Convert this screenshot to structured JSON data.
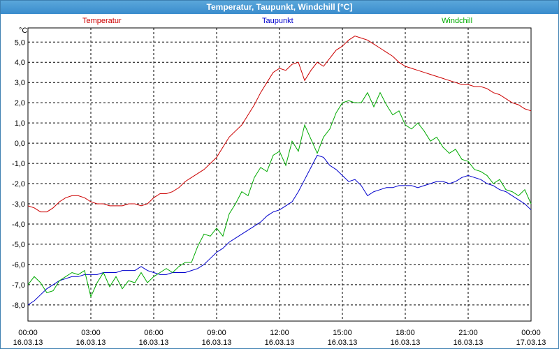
{
  "window": {
    "title": "Temperatur, Taupunkt, Windchill [°C]"
  },
  "chart_data": {
    "type": "line",
    "title": "Temperatur, Taupunkt, Windchill [°C]",
    "ylabel": "°C",
    "xlabel": "",
    "grid": true,
    "legend_placement": "top",
    "ylim": [
      -8.8,
      5.7
    ],
    "xlim_hours": [
      0,
      24
    ],
    "y_ticks": [
      5,
      4,
      3,
      2,
      1,
      0,
      -1,
      -2,
      -3,
      -4,
      -5,
      -6,
      -7,
      -8
    ],
    "y_tick_labels": [
      "5,0",
      "4,0",
      "3,0",
      "2,0",
      "1,0",
      "0,0",
      "-1,0",
      "-2,0",
      "-3,0",
      "-4,0",
      "-5,0",
      "-6,0",
      "-7,0",
      "-8,0"
    ],
    "x_ticks": [
      {
        "time": "00:00",
        "date": "16.03.13"
      },
      {
        "time": "03:00",
        "date": "16.03.13"
      },
      {
        "time": "06:00",
        "date": "16.03.13"
      },
      {
        "time": "09:00",
        "date": "16.03.13"
      },
      {
        "time": "12:00",
        "date": "16.03.13"
      },
      {
        "time": "15:00",
        "date": "16.03.13"
      },
      {
        "time": "18:00",
        "date": "16.03.13"
      },
      {
        "time": "21:00",
        "date": "16.03.13"
      },
      {
        "time": "00:00",
        "date": "17.03.13"
      }
    ],
    "series": [
      {
        "name": "Temperatur",
        "color": "#cc0000",
        "x": [
          0,
          0.3,
          0.6,
          0.9,
          1.2,
          1.5,
          1.8,
          2.1,
          2.4,
          2.7,
          3.0,
          3.3,
          3.6,
          3.9,
          4.2,
          4.5,
          4.8,
          5.1,
          5.4,
          5.7,
          6.0,
          6.3,
          6.6,
          6.9,
          7.2,
          7.5,
          7.8,
          8.1,
          8.4,
          8.7,
          9.0,
          9.3,
          9.6,
          9.9,
          10.2,
          10.5,
          10.8,
          11.1,
          11.4,
          11.7,
          12.0,
          12.3,
          12.6,
          12.9,
          13.2,
          13.5,
          13.8,
          14.1,
          14.4,
          14.7,
          15.0,
          15.3,
          15.6,
          15.9,
          16.2,
          16.5,
          16.8,
          17.1,
          17.4,
          17.7,
          18.0,
          18.3,
          18.6,
          18.9,
          19.2,
          19.5,
          19.8,
          20.1,
          20.4,
          20.7,
          21.0,
          21.3,
          21.6,
          21.9,
          22.2,
          22.5,
          22.8,
          23.1,
          23.4,
          23.7,
          24.0
        ],
        "values": [
          -3.1,
          -3.2,
          -3.4,
          -3.4,
          -3.2,
          -2.9,
          -2.7,
          -2.6,
          -2.6,
          -2.7,
          -2.9,
          -3.0,
          -3.0,
          -3.1,
          -3.1,
          -3.1,
          -3.0,
          -3.0,
          -3.1,
          -3.0,
          -2.7,
          -2.5,
          -2.5,
          -2.4,
          -2.2,
          -1.9,
          -1.7,
          -1.5,
          -1.3,
          -1.0,
          -0.7,
          -0.2,
          0.3,
          0.6,
          0.9,
          1.4,
          1.9,
          2.5,
          3.0,
          3.5,
          3.7,
          3.6,
          3.9,
          4.0,
          3.1,
          3.6,
          4.0,
          3.8,
          4.2,
          4.6,
          4.8,
          5.1,
          5.3,
          5.2,
          5.1,
          4.9,
          4.7,
          4.5,
          4.3,
          4.0,
          3.8,
          3.7,
          3.6,
          3.5,
          3.4,
          3.3,
          3.2,
          3.1,
          3.0,
          2.9,
          2.9,
          2.8,
          2.8,
          2.7,
          2.5,
          2.4,
          2.2,
          2.0,
          1.9,
          1.7,
          1.6
        ]
      },
      {
        "name": "Taupunkt",
        "color": "#0000cc",
        "x": [
          0,
          0.3,
          0.6,
          0.9,
          1.2,
          1.5,
          1.8,
          2.1,
          2.4,
          2.7,
          3.0,
          3.3,
          3.6,
          3.9,
          4.2,
          4.5,
          4.8,
          5.1,
          5.4,
          5.7,
          6.0,
          6.3,
          6.6,
          6.9,
          7.2,
          7.5,
          7.8,
          8.1,
          8.4,
          8.7,
          9.0,
          9.3,
          9.6,
          9.9,
          10.2,
          10.5,
          10.8,
          11.1,
          11.4,
          11.7,
          12.0,
          12.3,
          12.6,
          12.9,
          13.2,
          13.5,
          13.8,
          14.1,
          14.4,
          14.7,
          15.0,
          15.3,
          15.6,
          15.9,
          16.2,
          16.5,
          16.8,
          17.1,
          17.4,
          17.7,
          18.0,
          18.3,
          18.6,
          18.9,
          19.2,
          19.5,
          19.8,
          20.1,
          20.4,
          20.7,
          21.0,
          21.3,
          21.6,
          21.9,
          22.2,
          22.5,
          22.8,
          23.1,
          23.4,
          23.7,
          24.0
        ],
        "values": [
          -8.0,
          -7.8,
          -7.5,
          -7.2,
          -7.0,
          -6.8,
          -6.7,
          -6.6,
          -6.6,
          -6.5,
          -6.5,
          -6.5,
          -6.4,
          -6.4,
          -6.4,
          -6.3,
          -6.3,
          -6.3,
          -6.1,
          -6.3,
          -6.4,
          -6.5,
          -6.5,
          -6.4,
          -6.4,
          -6.4,
          -6.3,
          -6.2,
          -6.0,
          -5.7,
          -5.4,
          -5.2,
          -4.9,
          -4.7,
          -4.5,
          -4.3,
          -4.1,
          -3.9,
          -3.6,
          -3.4,
          -3.3,
          -3.1,
          -2.9,
          -2.4,
          -1.8,
          -1.2,
          -0.6,
          -0.7,
          -1.1,
          -1.3,
          -1.6,
          -1.9,
          -1.8,
          -2.1,
          -2.6,
          -2.4,
          -2.3,
          -2.2,
          -2.2,
          -2.1,
          -2.1,
          -2.1,
          -2.2,
          -2.1,
          -2.0,
          -1.9,
          -1.9,
          -2.0,
          -1.9,
          -1.7,
          -1.6,
          -1.7,
          -1.8,
          -2.0,
          -2.1,
          -2.3,
          -2.4,
          -2.6,
          -2.8,
          -3.0,
          -3.3
        ]
      },
      {
        "name": "Windchill",
        "color": "#00aa00",
        "x": [
          0,
          0.3,
          0.6,
          0.9,
          1.2,
          1.5,
          1.8,
          2.1,
          2.4,
          2.7,
          3.0,
          3.3,
          3.6,
          3.9,
          4.2,
          4.5,
          4.8,
          5.1,
          5.4,
          5.7,
          6.0,
          6.3,
          6.6,
          6.9,
          7.2,
          7.5,
          7.8,
          8.1,
          8.4,
          8.7,
          9.0,
          9.3,
          9.6,
          9.9,
          10.2,
          10.5,
          10.8,
          11.1,
          11.4,
          11.7,
          12.0,
          12.3,
          12.6,
          12.9,
          13.2,
          13.5,
          13.8,
          14.1,
          14.4,
          14.7,
          15.0,
          15.3,
          15.6,
          15.9,
          16.2,
          16.5,
          16.8,
          17.1,
          17.4,
          17.7,
          18.0,
          18.3,
          18.6,
          18.9,
          19.2,
          19.5,
          19.8,
          20.1,
          20.4,
          20.7,
          21.0,
          21.3,
          21.6,
          21.9,
          22.2,
          22.5,
          22.8,
          23.1,
          23.4,
          23.7,
          24.0
        ],
        "values": [
          -7.0,
          -6.6,
          -6.9,
          -7.4,
          -7.3,
          -6.8,
          -6.6,
          -6.4,
          -6.5,
          -6.3,
          -7.6,
          -6.9,
          -6.4,
          -7.1,
          -6.6,
          -7.2,
          -6.8,
          -6.9,
          -6.4,
          -6.9,
          -6.6,
          -6.4,
          -6.2,
          -6.4,
          -6.1,
          -5.9,
          -5.9,
          -5.1,
          -4.5,
          -4.6,
          -4.2,
          -4.6,
          -3.5,
          -3.0,
          -2.4,
          -2.6,
          -1.7,
          -1.2,
          -1.4,
          -0.6,
          -0.4,
          -1.1,
          0.1,
          -0.4,
          0.9,
          0.2,
          -0.5,
          0.3,
          0.7,
          1.5,
          2.0,
          2.1,
          2.0,
          2.0,
          2.5,
          1.8,
          2.5,
          1.9,
          1.4,
          1.6,
          0.9,
          0.7,
          1.0,
          0.6,
          0.1,
          0.3,
          -0.2,
          -0.5,
          -0.3,
          -0.8,
          -0.9,
          -1.3,
          -1.4,
          -1.6,
          -2.0,
          -1.8,
          -2.3,
          -2.4,
          -2.6,
          -2.3,
          -3.0
        ]
      }
    ]
  }
}
